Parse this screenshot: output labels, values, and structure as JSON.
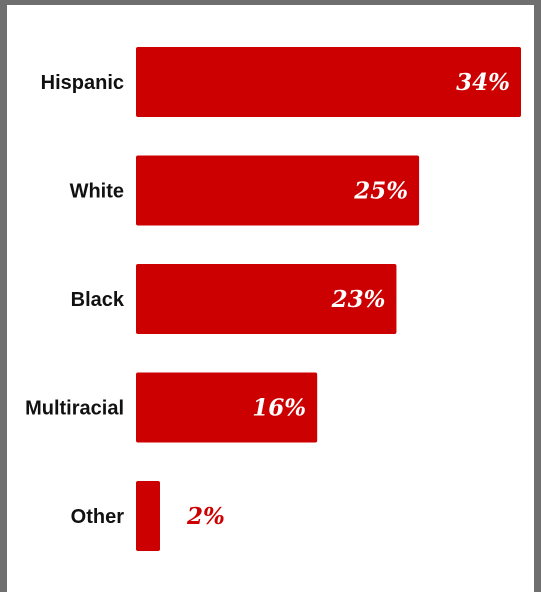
{
  "chart_data": {
    "type": "bar",
    "orientation": "horizontal",
    "categories": [
      "Hispanic",
      "White",
      "Black",
      "Multiracial",
      "Other"
    ],
    "values": [
      34,
      25,
      23,
      16,
      2
    ],
    "value_labels": [
      "34%",
      "25%",
      "23%",
      "16%",
      "2%"
    ],
    "unit": "%",
    "xlim": [
      0,
      34
    ],
    "grid": false,
    "legend": "none",
    "colors": {
      "bar": "#cc0000",
      "label_inside": "#ffffff",
      "label_outside": "#cc0000",
      "category_text": "#111111",
      "frame": "#6f6f6f",
      "background": "#ffffff"
    }
  }
}
